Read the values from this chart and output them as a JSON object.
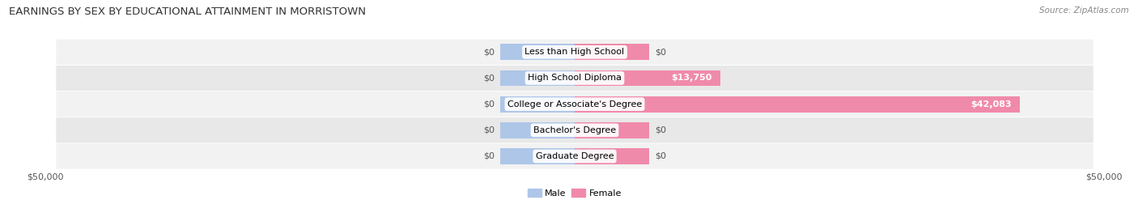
{
  "title": "EARNINGS BY SEX BY EDUCATIONAL ATTAINMENT IN MORRISTOWN",
  "source": "Source: ZipAtlas.com",
  "categories": [
    "Less than High School",
    "High School Diploma",
    "College or Associate's Degree",
    "Bachelor's Degree",
    "Graduate Degree"
  ],
  "male_values": [
    0,
    0,
    0,
    0,
    0
  ],
  "female_values": [
    0,
    13750,
    42083,
    0,
    0
  ],
  "male_color": "#aec6e8",
  "female_color": "#f08aaa",
  "row_bg_light": "#f2f2f2",
  "row_bg_dark": "#e8e8e8",
  "max_value": 50000,
  "male_placeholder": 7000,
  "female_placeholder": 7000,
  "xlabel_left": "$50,000",
  "xlabel_right": "$50,000",
  "legend_male": "Male",
  "legend_female": "Female",
  "title_fontsize": 9.5,
  "source_fontsize": 7.5,
  "label_fontsize": 8,
  "tick_fontsize": 8,
  "cat_fontsize": 8,
  "background_color": "#ffffff",
  "value_color": "#555555",
  "title_color": "#333333"
}
